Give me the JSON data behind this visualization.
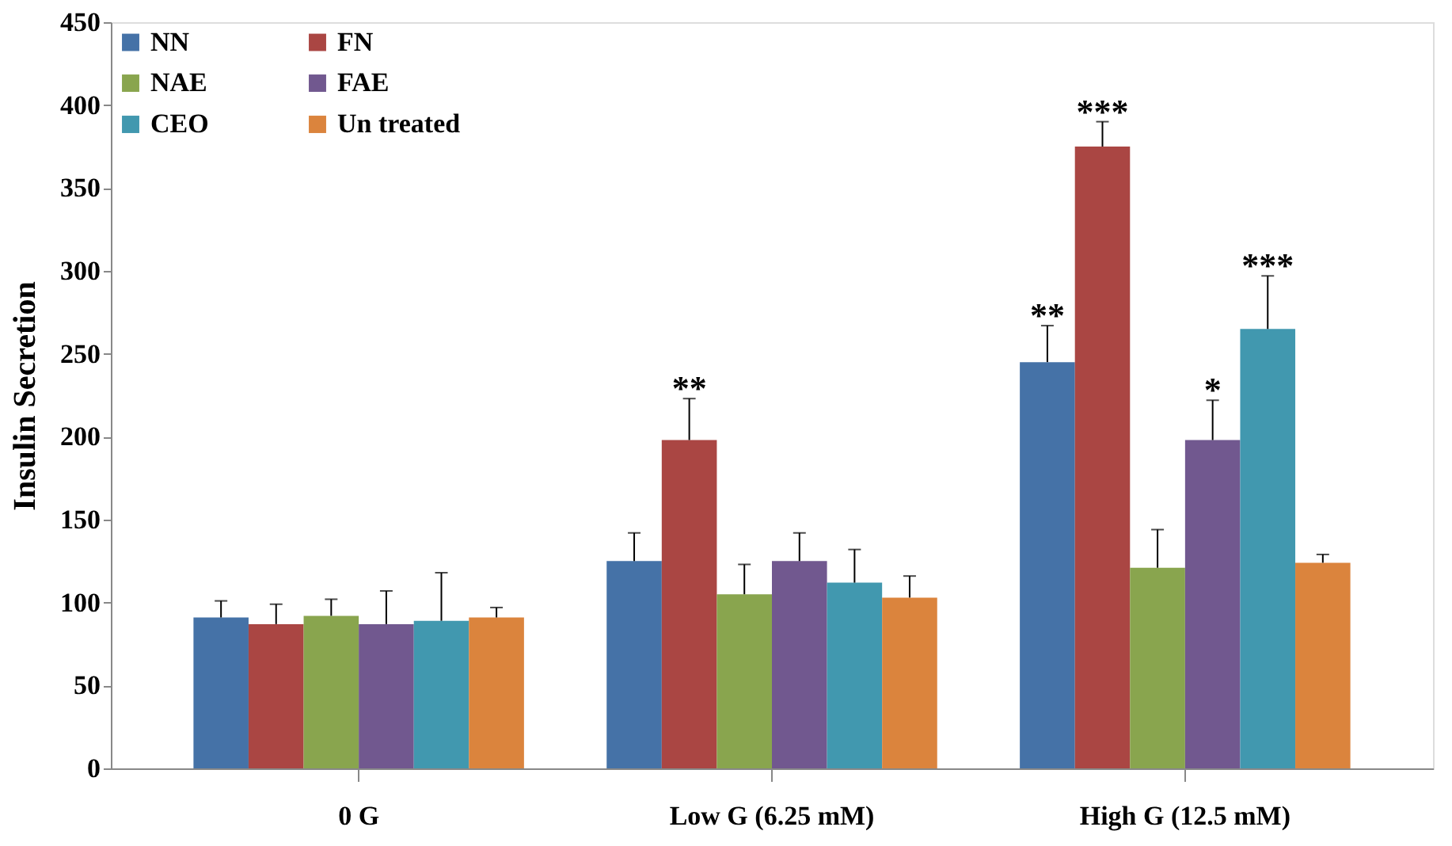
{
  "chart_data": {
    "type": "bar",
    "ylabel": "Insulin Secretion",
    "categories": [
      "0 G",
      "Low G (6.25 mM)",
      "High G (12.5 mM)"
    ],
    "series": [
      {
        "name": "NN",
        "color": "#4572a7",
        "values": [
          91,
          125,
          245
        ],
        "errors": [
          [
            91,
            101
          ],
          [
            125,
            142
          ],
          [
            245,
            267
          ]
        ],
        "value_labels": [
          null,
          null,
          "**"
        ]
      },
      {
        "name": "FN",
        "color": "#aa4643",
        "values": [
          87,
          198,
          375
        ],
        "errors": [
          [
            87,
            99
          ],
          [
            198,
            223
          ],
          [
            375,
            390
          ]
        ],
        "value_labels": [
          null,
          "**",
          "***"
        ]
      },
      {
        "name": "NAE",
        "color": "#89a54e",
        "values": [
          92,
          105,
          121
        ],
        "errors": [
          [
            92,
            102
          ],
          [
            105,
            123
          ],
          [
            121,
            144
          ]
        ]
      },
      {
        "name": "FAE",
        "color": "#71588f",
        "values": [
          87,
          125,
          198
        ],
        "errors": [
          [
            87,
            107
          ],
          [
            125,
            142
          ],
          [
            198,
            222
          ]
        ],
        "value_labels": [
          null,
          null,
          "*"
        ]
      },
      {
        "name": "CEO",
        "color": "#4198af",
        "values": [
          89,
          112,
          265
        ],
        "errors": [
          [
            89,
            118
          ],
          [
            112,
            132
          ],
          [
            265,
            297
          ]
        ],
        "value_labels": [
          null,
          null,
          "***"
        ]
      },
      {
        "name": "Un treated",
        "color": "#db843d",
        "values": [
          91,
          103,
          124
        ],
        "errors": [
          [
            91,
            97
          ],
          [
            103,
            116
          ],
          [
            124,
            129
          ]
        ]
      }
    ],
    "ylim": [
      0,
      450
    ],
    "yticks": [
      0,
      50,
      100,
      150,
      200,
      250,
      300,
      350,
      400,
      450
    ],
    "grid": false,
    "legend": "top left"
  }
}
